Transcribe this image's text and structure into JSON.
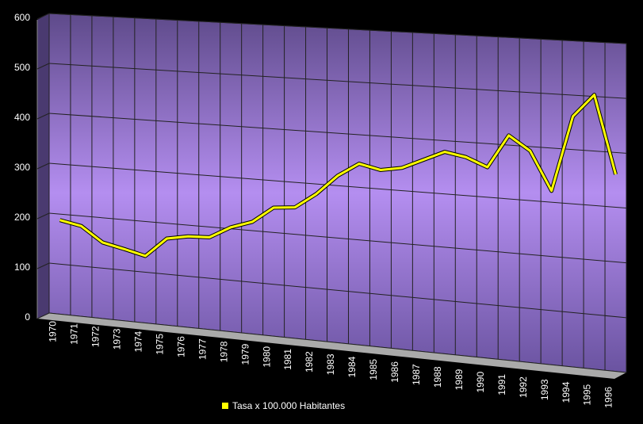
{
  "chart_data": {
    "type": "line",
    "categories": [
      "1970",
      "1971",
      "1972",
      "1973",
      "1974",
      "1975",
      "1976",
      "1977",
      "1978",
      "1979",
      "1980",
      "1981",
      "1982",
      "1983",
      "1984",
      "1985",
      "1986",
      "1987",
      "1988",
      "1989",
      "1990",
      "1991",
      "1992",
      "1993",
      "1994",
      "1995",
      "1996"
    ],
    "series": [
      {
        "name": "Tasa x 100.000 Habitantes",
        "color": "#ffff00",
        "values": [
          188,
          180,
          151,
          142,
          132,
          170,
          178,
          180,
          203,
          217,
          248,
          252,
          281,
          319,
          345,
          336,
          343,
          361,
          379,
          372,
          356,
          418,
          392,
          321,
          461,
          503,
          360
        ]
      }
    ],
    "ylim": [
      0,
      600
    ],
    "yticks": [
      0,
      100,
      200,
      300,
      400,
      500,
      600
    ],
    "grid": true
  }
}
